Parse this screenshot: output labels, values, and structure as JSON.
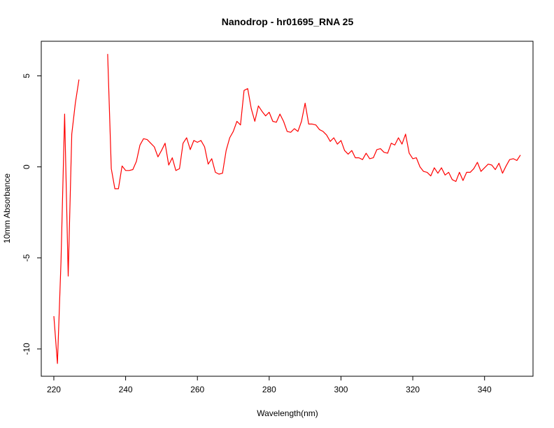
{
  "chart_data": {
    "type": "line",
    "title": "Nanodrop - hr01695_RNA 25",
    "xlabel": "Wavelength(nm)",
    "ylabel": "10mm Absorbance",
    "xlim": [
      216.5,
      353.5
    ],
    "ylim": [
      -11.5,
      6.9
    ],
    "x_ticks": [
      220,
      240,
      260,
      280,
      300,
      320,
      340
    ],
    "y_ticks": [
      -10,
      -5,
      0,
      5
    ],
    "x_tick_labels": [
      "220",
      "240",
      "260",
      "280",
      "300",
      "320",
      "340"
    ],
    "y_tick_labels": [
      "-10",
      "-5",
      "0",
      "5"
    ],
    "grid": false,
    "series": [
      {
        "color": "#ff0000",
        "segments": [
          {
            "x": [
              220,
              221,
              222,
              223,
              224,
              225,
              226,
              227
            ],
            "y": [
              -8.2,
              -10.8,
              -5.2,
              2.9,
              -6.0,
              1.8,
              3.5,
              4.8
            ]
          },
          {
            "x": [
              235,
              236,
              237,
              238,
              239,
              240,
              241,
              242,
              243,
              244,
              245,
              246,
              247,
              248,
              249,
              250,
              251,
              252,
              253,
              254,
              255,
              256,
              257,
              258,
              259,
              260,
              261,
              262,
              263,
              264,
              265,
              266,
              267,
              268,
              269,
              270,
              271,
              272,
              273,
              274,
              275,
              276,
              277,
              278,
              279,
              280,
              281,
              282,
              283,
              284,
              285,
              286,
              287,
              288,
              289,
              290,
              291,
              292,
              293,
              294,
              295,
              296,
              297,
              298,
              299,
              300,
              301,
              302,
              303,
              304,
              305,
              306,
              307,
              308,
              309,
              310,
              311,
              312,
              313,
              314,
              315,
              316,
              317,
              318,
              319,
              320,
              321,
              322,
              323,
              324,
              325,
              326,
              327,
              328,
              329,
              330,
              331,
              332,
              333,
              334,
              335,
              336,
              337,
              338,
              339,
              340,
              341,
              342,
              343,
              344,
              345,
              346,
              347,
              348,
              349,
              350
            ],
            "y": [
              6.2,
              -0.1,
              -1.2,
              -1.2,
              0.05,
              -0.2,
              -0.2,
              -0.15,
              0.3,
              1.2,
              1.55,
              1.5,
              1.3,
              1.1,
              0.55,
              0.9,
              1.3,
              0.1,
              0.5,
              -0.2,
              -0.1,
              1.3,
              1.6,
              0.95,
              1.45,
              1.35,
              1.45,
              1.1,
              0.15,
              0.45,
              -0.3,
              -0.4,
              -0.35,
              0.9,
              1.6,
              1.95,
              2.5,
              2.3,
              4.2,
              4.3,
              3.2,
              2.5,
              3.35,
              3.05,
              2.8,
              3.0,
              2.5,
              2.45,
              2.9,
              2.5,
              1.95,
              1.9,
              2.1,
              1.95,
              2.5,
              3.5,
              2.35,
              2.35,
              2.3,
              2.05,
              1.95,
              1.75,
              1.4,
              1.6,
              1.25,
              1.45,
              0.9,
              0.7,
              0.9,
              0.5,
              0.5,
              0.4,
              0.75,
              0.45,
              0.5,
              0.95,
              1.0,
              0.8,
              0.75,
              1.3,
              1.2,
              1.6,
              1.25,
              1.8,
              0.75,
              0.45,
              0.5,
              0.0,
              -0.25,
              -0.3,
              -0.5,
              -0.05,
              -0.35,
              -0.05,
              -0.45,
              -0.3,
              -0.7,
              -0.8,
              -0.3,
              -0.75,
              -0.3,
              -0.3,
              -0.1,
              0.25,
              -0.25,
              -0.05,
              0.15,
              0.1,
              -0.15,
              0.2,
              -0.35,
              0.05,
              0.4,
              0.45,
              0.35,
              0.65
            ]
          }
        ]
      }
    ]
  }
}
